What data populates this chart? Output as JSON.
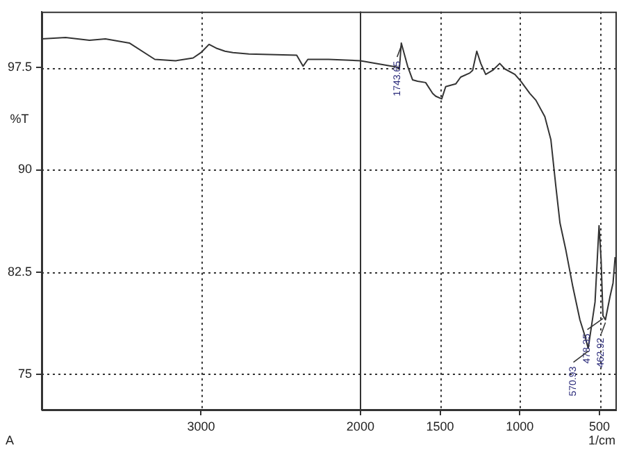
{
  "chart_data": {
    "type": "line",
    "xlabel": "1/cm",
    "ylabel": "%T",
    "legend": false,
    "grid": true,
    "xlim": [
      4000,
      400
    ],
    "ylim": [
      72.4,
      101.6
    ],
    "xticks": [
      3000,
      2000,
      1500,
      1000,
      500
    ],
    "yticks": [
      75,
      82.5,
      90,
      97.5
    ],
    "ref_lines": [
      {
        "axis": "x",
        "value": 2000,
        "line_style": "solid",
        "color": "#333333"
      }
    ],
    "annotations": [
      {
        "text": "1743.65",
        "x": 1743.65,
        "y": 99.3
      },
      {
        "text": "570.93",
        "x": 570.93,
        "y": 76.9
      },
      {
        "text": "478.35",
        "x": 478.35,
        "y": 79.3
      },
      {
        "text": "462.92",
        "x": 462.92,
        "y": 79.0
      },
      "A"
    ],
    "series": [
      {
        "color": "#333333",
        "x": [
          4000,
          3850,
          3700,
          3600,
          3500,
          3450,
          3290,
          3160,
          3050,
          3000,
          2950,
          2900,
          2850,
          2800,
          2700,
          2400,
          2360,
          2330,
          2200,
          2000,
          1755,
          1743.65,
          1704,
          1673,
          1641,
          1591,
          1547,
          1528,
          1490,
          1465,
          1402,
          1371,
          1314,
          1296,
          1270,
          1245,
          1214,
          1170,
          1126,
          1094,
          1031,
          994,
          937,
          899,
          843,
          805,
          774,
          748,
          711,
          667,
          623,
          591,
          570.93,
          528,
          503,
          490,
          478.35,
          462.92,
          434,
          415,
          402
        ],
        "values": [
          99.6,
          99.7,
          99.5,
          99.6,
          99.4,
          99.3,
          98.1,
          98.0,
          98.2,
          98.6,
          99.2,
          98.9,
          98.7,
          98.6,
          98.5,
          98.4,
          97.6,
          98.1,
          98.1,
          98.0,
          97.5,
          99.3,
          97.6,
          96.6,
          96.5,
          96.4,
          95.6,
          95.4,
          95.2,
          96.1,
          96.3,
          96.8,
          97.1,
          97.3,
          98.7,
          97.8,
          97.0,
          97.3,
          97.8,
          97.4,
          97.0,
          96.5,
          95.6,
          95.1,
          93.9,
          92.2,
          88.8,
          86.1,
          84.1,
          81.4,
          79.0,
          77.8,
          76.9,
          80.3,
          85.9,
          83.4,
          79.3,
          79.0,
          80.7,
          81.7,
          83.6
        ]
      }
    ]
  }
}
